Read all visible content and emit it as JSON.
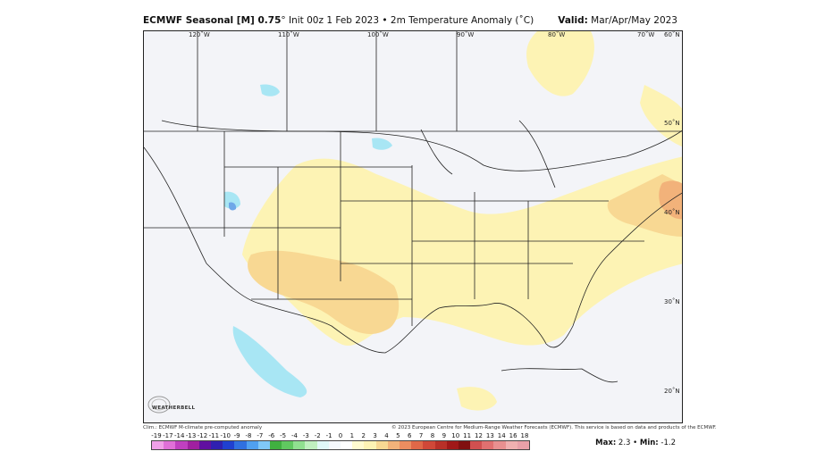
{
  "header": {
    "model": "ECMWF Seasonal [M] 0.75",
    "degree_symbol": "°",
    "init": "Init 00z 1 Feb 2023",
    "bullet": "•",
    "variable": "2m Temperature Anomaly (˚C)",
    "valid_label": "Valid:",
    "valid_value": "Mar/Apr/May 2023"
  },
  "map": {
    "lon_labels": [
      "120˚W",
      "110˚W",
      "100˚W",
      "90˚W",
      "80˚W",
      "70˚W"
    ],
    "lat_labels": [
      "60˚N",
      "50˚N",
      "40˚N",
      "30˚N",
      "20˚N"
    ],
    "colors": {
      "background": "#f3f4f8",
      "warm_light": "#fdf3b4",
      "warm_medium": "#f8d893",
      "warm_strong": "#f2b27a",
      "cool_light": "#a8e6f4",
      "cool_medium": "#6fa8e8",
      "border": "#222222"
    }
  },
  "footer": {
    "clim": "Clim.: ECMWF M-climate pre-computed anomaly",
    "copyright": "© 2023 European Centre for Medium-Range Weather Forecasts (ECMWF). This service is based on data and products of the ECMWF."
  },
  "colorbar": {
    "ticks": [
      "-19",
      "-17",
      "-14",
      "-13",
      "-12",
      "-11",
      "-10",
      "-9",
      "-8",
      "-7",
      "-6",
      "-5",
      "-4",
      "-3",
      "-2",
      "-1",
      "0",
      "1",
      "2",
      "3",
      "4",
      "5",
      "6",
      "7",
      "8",
      "9",
      "10",
      "11",
      "12",
      "13",
      "14",
      "16",
      "18"
    ],
    "colors": [
      "#f0a0e8",
      "#e070d8",
      "#c040c0",
      "#a020a0",
      "#6010a0",
      "#3020b0",
      "#2040d0",
      "#3070e0",
      "#50a0f0",
      "#80c8f8",
      "#40b040",
      "#60c860",
      "#90e090",
      "#c0f0c0",
      "#e0f8f8",
      "#f4f8fc",
      "#ffffff",
      "#fffbd0",
      "#fdf3b4",
      "#f8d893",
      "#f2b27a",
      "#ec8d60",
      "#e06848",
      "#d04838",
      "#b83028",
      "#a01818",
      "#801010",
      "#d05050",
      "#e07070",
      "#e89090",
      "#f0b0b0",
      "#e8a0a8"
    ]
  },
  "stats": {
    "max_label": "Max:",
    "max_value": "2.3",
    "min_label": "Min:",
    "min_value": "-1.2",
    "separator": "•"
  },
  "logo": {
    "text": "WEATHERBELL"
  }
}
